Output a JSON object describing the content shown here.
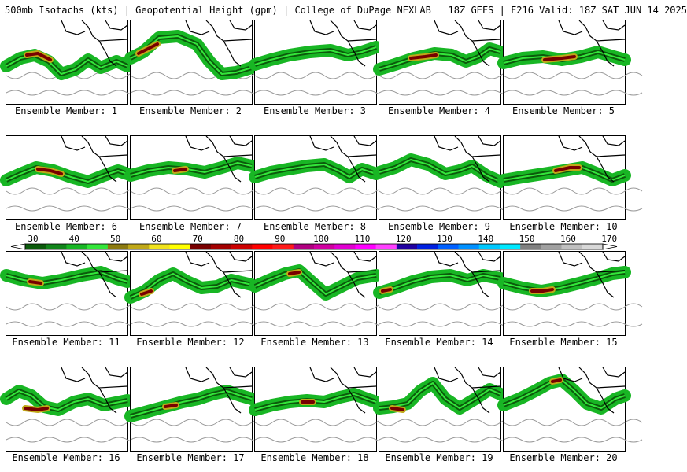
{
  "header": {
    "title": "500mb Isotachs (kts) | Geopotential Height (gpm) | College of DuPage NEXLAB",
    "run": "18Z GEFS | F216 Valid: 18Z SAT JUN 14 2025"
  },
  "colorbar": {
    "ticks": [
      "30",
      "40",
      "50",
      "60",
      "70",
      "80",
      "90",
      "100",
      "110",
      "120",
      "130",
      "140",
      "150",
      "160",
      "170"
    ],
    "colors": [
      "#0b5a0b",
      "#11851a",
      "#18b624",
      "#33e63a",
      "#8c7a10",
      "#c0a818",
      "#f0e21c",
      "#ffff00",
      "#780000",
      "#a30000",
      "#cc0000",
      "#ff0000",
      "#ff1a1a",
      "#b00080",
      "#d000a0",
      "#e000d0",
      "#ff00ff",
      "#ff40ff",
      "#2000a0",
      "#0020e0",
      "#0060ff",
      "#0090ff",
      "#00c8ff",
      "#00e8ff",
      "#808080",
      "#a0a0a0",
      "#c0c0c0",
      "#d8d8d8"
    ]
  },
  "panels": [
    {
      "label": "Ensemble Member: 1",
      "jet": [
        [
          0,
          58
        ],
        [
          18,
          48
        ],
        [
          36,
          44
        ],
        [
          54,
          52
        ],
        [
          70,
          68
        ],
        [
          88,
          62
        ],
        [
          104,
          50
        ],
        [
          120,
          60
        ],
        [
          140,
          52
        ],
        [
          154,
          58
        ]
      ],
      "core": [
        [
          26,
          44
        ],
        [
          40,
          42
        ],
        [
          56,
          50
        ]
      ]
    },
    {
      "label": "Ensemble Member: 2",
      "jet": [
        [
          0,
          48
        ],
        [
          16,
          40
        ],
        [
          36,
          22
        ],
        [
          60,
          20
        ],
        [
          84,
          30
        ],
        [
          100,
          52
        ],
        [
          116,
          68
        ],
        [
          134,
          66
        ],
        [
          154,
          60
        ]
      ],
      "core": [
        [
          10,
          42
        ],
        [
          22,
          36
        ],
        [
          34,
          30
        ]
      ]
    },
    {
      "label": "Ensemble Member: 3",
      "jet": [
        [
          0,
          56
        ],
        [
          20,
          50
        ],
        [
          44,
          44
        ],
        [
          70,
          40
        ],
        [
          96,
          38
        ],
        [
          118,
          44
        ],
        [
          136,
          40
        ],
        [
          154,
          34
        ]
      ],
      "core": []
    },
    {
      "label": "Ensemble Member: 4",
      "jet": [
        [
          0,
          62
        ],
        [
          20,
          56
        ],
        [
          44,
          48
        ],
        [
          70,
          42
        ],
        [
          92,
          44
        ],
        [
          110,
          52
        ],
        [
          126,
          46
        ],
        [
          140,
          36
        ],
        [
          154,
          40
        ]
      ],
      "core": [
        [
          40,
          48
        ],
        [
          58,
          46
        ],
        [
          72,
          44
        ]
      ]
    },
    {
      "label": "Ensemble Member: 5",
      "jet": [
        [
          0,
          54
        ],
        [
          24,
          48
        ],
        [
          50,
          46
        ],
        [
          74,
          50
        ],
        [
          98,
          46
        ],
        [
          120,
          40
        ],
        [
          140,
          46
        ],
        [
          154,
          50
        ]
      ],
      "core": [
        [
          52,
          50
        ],
        [
          74,
          48
        ],
        [
          90,
          46
        ]
      ]
    },
    {
      "label": "Ensemble Member: 6",
      "jet": [
        [
          0,
          56
        ],
        [
          18,
          48
        ],
        [
          38,
          40
        ],
        [
          60,
          44
        ],
        [
          82,
          52
        ],
        [
          104,
          58
        ],
        [
          124,
          50
        ],
        [
          142,
          44
        ],
        [
          154,
          48
        ]
      ],
      "core": [
        [
          40,
          42
        ],
        [
          56,
          44
        ],
        [
          70,
          48
        ]
      ]
    },
    {
      "label": "Ensemble Member: 7",
      "jet": [
        [
          0,
          50
        ],
        [
          22,
          44
        ],
        [
          48,
          40
        ],
        [
          72,
          42
        ],
        [
          94,
          46
        ],
        [
          116,
          40
        ],
        [
          136,
          34
        ],
        [
          154,
          38
        ]
      ],
      "core": [
        [
          56,
          44
        ],
        [
          70,
          42
        ]
      ]
    },
    {
      "label": "Ensemble Member: 8",
      "jet": [
        [
          0,
          52
        ],
        [
          20,
          46
        ],
        [
          42,
          42
        ],
        [
          66,
          38
        ],
        [
          88,
          36
        ],
        [
          106,
          44
        ],
        [
          120,
          52
        ],
        [
          136,
          42
        ],
        [
          154,
          48
        ]
      ],
      "core": []
    },
    {
      "label": "Ensemble Member: 9",
      "jet": [
        [
          0,
          46
        ],
        [
          20,
          40
        ],
        [
          40,
          30
        ],
        [
          62,
          36
        ],
        [
          84,
          48
        ],
        [
          102,
          44
        ],
        [
          118,
          38
        ],
        [
          136,
          50
        ],
        [
          154,
          58
        ]
      ],
      "core": []
    },
    {
      "label": "Ensemble Member: 10",
      "jet": [
        [
          0,
          56
        ],
        [
          24,
          52
        ],
        [
          50,
          48
        ],
        [
          76,
          44
        ],
        [
          100,
          40
        ],
        [
          120,
          48
        ],
        [
          138,
          56
        ],
        [
          154,
          50
        ]
      ],
      "core": [
        [
          66,
          44
        ],
        [
          84,
          40
        ],
        [
          96,
          40
        ]
      ]
    },
    {
      "label": "Ensemble Member: 11",
      "jet": [
        [
          0,
          30
        ],
        [
          22,
          36
        ],
        [
          46,
          40
        ],
        [
          70,
          36
        ],
        [
          96,
          30
        ],
        [
          120,
          26
        ],
        [
          140,
          34
        ],
        [
          154,
          38
        ]
      ],
      "core": [
        [
          30,
          38
        ],
        [
          44,
          40
        ]
      ]
    },
    {
      "label": "Ensemble Member: 12",
      "jet": [
        [
          0,
          58
        ],
        [
          18,
          50
        ],
        [
          36,
          36
        ],
        [
          54,
          28
        ],
        [
          72,
          38
        ],
        [
          90,
          46
        ],
        [
          110,
          44
        ],
        [
          128,
          36
        ],
        [
          154,
          42
        ]
      ],
      "core": [
        [
          14,
          54
        ],
        [
          26,
          50
        ]
      ]
    },
    {
      "label": "Ensemble Member: 13",
      "jet": [
        [
          0,
          44
        ],
        [
          18,
          36
        ],
        [
          38,
          28
        ],
        [
          56,
          24
        ],
        [
          74,
          40
        ],
        [
          90,
          54
        ],
        [
          110,
          44
        ],
        [
          130,
          34
        ],
        [
          154,
          30
        ]
      ],
      "core": [
        [
          44,
          28
        ],
        [
          56,
          26
        ]
      ]
    },
    {
      "label": "Ensemble Member: 14",
      "jet": [
        [
          0,
          52
        ],
        [
          20,
          46
        ],
        [
          42,
          38
        ],
        [
          66,
          32
        ],
        [
          90,
          30
        ],
        [
          112,
          36
        ],
        [
          132,
          30
        ],
        [
          154,
          34
        ]
      ],
      "core": [
        [
          4,
          50
        ],
        [
          14,
          48
        ]
      ]
    },
    {
      "label": "Ensemble Member: 15",
      "jet": [
        [
          0,
          40
        ],
        [
          24,
          46
        ],
        [
          48,
          50
        ],
        [
          72,
          46
        ],
        [
          96,
          40
        ],
        [
          118,
          34
        ],
        [
          138,
          28
        ],
        [
          154,
          26
        ]
      ],
      "core": [
        [
          36,
          50
        ],
        [
          50,
          50
        ],
        [
          62,
          48
        ]
      ]
    },
    {
      "label": "Ensemble Member: 16",
      "jet": [
        [
          0,
          40
        ],
        [
          16,
          30
        ],
        [
          32,
          36
        ],
        [
          48,
          50
        ],
        [
          66,
          54
        ],
        [
          86,
          44
        ],
        [
          104,
          40
        ],
        [
          124,
          48
        ],
        [
          154,
          42
        ]
      ],
      "core": [
        [
          24,
          52
        ],
        [
          40,
          54
        ],
        [
          52,
          52
        ]
      ]
    },
    {
      "label": "Ensemble Member: 17",
      "jet": [
        [
          0,
          62
        ],
        [
          22,
          56
        ],
        [
          44,
          50
        ],
        [
          66,
          44
        ],
        [
          86,
          40
        ],
        [
          104,
          34
        ],
        [
          122,
          30
        ],
        [
          140,
          36
        ],
        [
          154,
          40
        ]
      ],
      "core": [
        [
          44,
          50
        ],
        [
          58,
          48
        ]
      ]
    },
    {
      "label": "Ensemble Member: 18",
      "jet": [
        [
          0,
          54
        ],
        [
          22,
          48
        ],
        [
          44,
          44
        ],
        [
          66,
          42
        ],
        [
          88,
          44
        ],
        [
          108,
          38
        ],
        [
          126,
          34
        ],
        [
          142,
          40
        ],
        [
          154,
          44
        ]
      ],
      "core": [
        [
          60,
          44
        ],
        [
          74,
          44
        ]
      ]
    },
    {
      "label": "Ensemble Member: 19",
      "jet": [
        [
          0,
          52
        ],
        [
          18,
          50
        ],
        [
          36,
          46
        ],
        [
          52,
          30
        ],
        [
          68,
          20
        ],
        [
          84,
          40
        ],
        [
          102,
          52
        ],
        [
          122,
          40
        ],
        [
          140,
          28
        ],
        [
          154,
          34
        ]
      ],
      "core": [
        [
          16,
          52
        ],
        [
          30,
          54
        ]
      ]
    },
    {
      "label": "Ensemble Member: 20",
      "jet": [
        [
          0,
          48
        ],
        [
          20,
          40
        ],
        [
          40,
          30
        ],
        [
          58,
          20
        ],
        [
          74,
          16
        ],
        [
          90,
          30
        ],
        [
          106,
          46
        ],
        [
          124,
          52
        ],
        [
          142,
          40
        ],
        [
          154,
          36
        ]
      ],
      "core": [
        [
          62,
          18
        ],
        [
          72,
          16
        ]
      ]
    }
  ]
}
